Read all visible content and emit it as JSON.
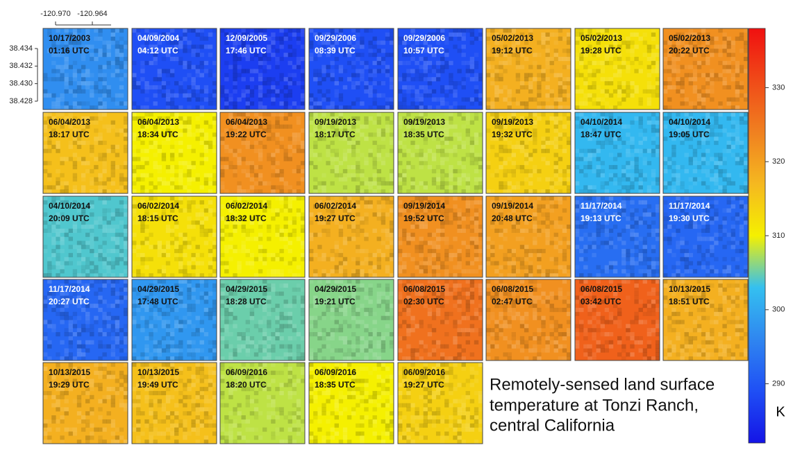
{
  "chart_data": {
    "type": "heatmap",
    "caption": [
      "Remotely-sensed land surface",
      "temperature at Tonzi Ranch,",
      "central California"
    ],
    "colorbar_label": "K",
    "clim": [
      282,
      338
    ],
    "colorbar_ticks": [
      290,
      300,
      310,
      320,
      330
    ],
    "colorscale": [
      "#1414e6",
      "#1f4ff5",
      "#2f86f0",
      "#34c0f0",
      "#f5f000",
      "#f5b820",
      "#f08020",
      "#f04a18",
      "#f01010"
    ],
    "xlim": [
      -120.97204,
      -120.95822
    ],
    "xticks": [
      {
        "value": -120.97,
        "label": "-120.970"
      },
      {
        "value": -120.964,
        "label": "-120.964"
      }
    ],
    "ylim": [
      38.42705,
      38.43629
    ],
    "yticks": [
      {
        "value": 38.434,
        "label": "38.434"
      },
      {
        "value": 38.432,
        "label": "38.432"
      },
      {
        "value": 38.43,
        "label": "38.430"
      },
      {
        "value": 38.428,
        "label": "38.428"
      }
    ],
    "panels": [
      {
        "date": "10/17/2003",
        "time": "01:16 UTC",
        "value": 297
      },
      {
        "date": "04/09/2004",
        "time": "04:12 UTC",
        "value": 289
      },
      {
        "date": "12/09/2005",
        "time": "17:46 UTC",
        "value": 287
      },
      {
        "date": "09/29/2006",
        "time": "08:39 UTC",
        "value": 289
      },
      {
        "date": "09/29/2006",
        "time": "10:57 UTC",
        "value": 289
      },
      {
        "date": "05/02/2013",
        "time": "19:12 UTC",
        "value": 318
      },
      {
        "date": "05/02/2013",
        "time": "19:28 UTC",
        "value": 312
      },
      {
        "date": "05/02/2013",
        "time": "20:22 UTC",
        "value": 322
      },
      {
        "date": "06/04/2013",
        "time": "18:17 UTC",
        "value": 316
      },
      {
        "date": "06/04/2013",
        "time": "18:34 UTC",
        "value": 310
      },
      {
        "date": "06/04/2013",
        "time": "19:22 UTC",
        "value": 322
      },
      {
        "date": "09/19/2013",
        "time": "18:17 UTC",
        "value": 308
      },
      {
        "date": "09/19/2013",
        "time": "18:35 UTC",
        "value": 308
      },
      {
        "date": "09/19/2013",
        "time": "19:32 UTC",
        "value": 314
      },
      {
        "date": "04/10/2014",
        "time": "18:47 UTC",
        "value": 302
      },
      {
        "date": "04/10/2014",
        "time": "19:05 UTC",
        "value": 302
      },
      {
        "date": "04/10/2014",
        "time": "20:09 UTC",
        "value": 304
      },
      {
        "date": "06/02/2014",
        "time": "18:15 UTC",
        "value": 312
      },
      {
        "date": "06/02/2014",
        "time": "18:32 UTC",
        "value": 310
      },
      {
        "date": "06/02/2014",
        "time": "19:27 UTC",
        "value": 318
      },
      {
        "date": "09/19/2014",
        "time": "19:52 UTC",
        "value": 322
      },
      {
        "date": "09/19/2014",
        "time": "20:48 UTC",
        "value": 320
      },
      {
        "date": "11/17/2014",
        "time": "19:13 UTC",
        "value": 293
      },
      {
        "date": "11/17/2014",
        "time": "19:30 UTC",
        "value": 292
      },
      {
        "date": "11/17/2014",
        "time": "20:27 UTC",
        "value": 292
      },
      {
        "date": "04/29/2015",
        "time": "17:48 UTC",
        "value": 298
      },
      {
        "date": "04/29/2015",
        "time": "18:28 UTC",
        "value": 305
      },
      {
        "date": "04/29/2015",
        "time": "19:21 UTC",
        "value": 306
      },
      {
        "date": "06/08/2015",
        "time": "02:30 UTC",
        "value": 326
      },
      {
        "date": "06/08/2015",
        "time": "02:47 UTC",
        "value": 322
      },
      {
        "date": "06/08/2015",
        "time": "03:42 UTC",
        "value": 328
      },
      {
        "date": "10/13/2015",
        "time": "18:51 UTC",
        "value": 318
      },
      {
        "date": "10/13/2015",
        "time": "19:29 UTC",
        "value": 318
      },
      {
        "date": "10/13/2015",
        "time": "19:49 UTC",
        "value": 316
      },
      {
        "date": "06/09/2016",
        "time": "18:20 UTC",
        "value": 308
      },
      {
        "date": "06/09/2016",
        "time": "18:35 UTC",
        "value": 310
      },
      {
        "date": "06/09/2016",
        "time": "19:27 UTC",
        "value": 314
      }
    ]
  }
}
